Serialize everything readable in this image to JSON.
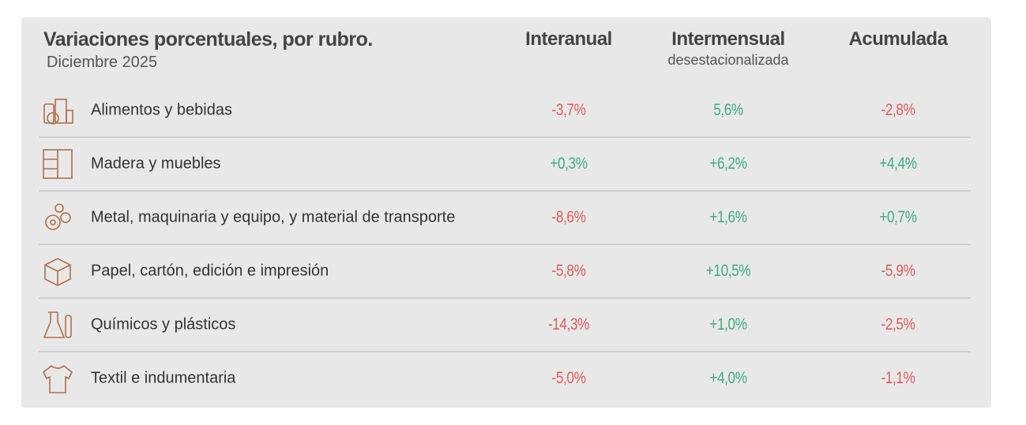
{
  "header": {
    "title": "Variaciones porcentuales, por rubro.",
    "subtitle": "Diciembre 2025",
    "columns": [
      "Interanual",
      "Intermensual",
      "Acumulada"
    ],
    "column_note": "desestacionalizada"
  },
  "colors": {
    "negative": "#e05c5c",
    "positive": "#3fae82"
  },
  "table": {
    "rows": [
      {
        "label": "Alimentos y bebidas",
        "values": [
          "-3,7%",
          "5,6%",
          "-2,8%"
        ]
      },
      {
        "label": "Madera y muebles",
        "values": [
          "+0,3%",
          "+6,2%",
          "+4,4%"
        ]
      },
      {
        "label": "Metal, maquinaria y equipo, y material de transporte",
        "values": [
          "-8,6%",
          "+1,6%",
          "+0,7%"
        ]
      },
      {
        "label": "Papel, cartón, edición e impresión",
        "values": [
          "-5,8%",
          "+10,5%",
          "-5,9%"
        ]
      },
      {
        "label": "Químicos y plásticos",
        "values": [
          "-14,3%",
          "+1,0%",
          "-2,5%"
        ]
      },
      {
        "label": "Textil e indumentaria",
        "values": [
          "-5,0%",
          "+4,0%",
          "-1,1%"
        ]
      }
    ]
  }
}
